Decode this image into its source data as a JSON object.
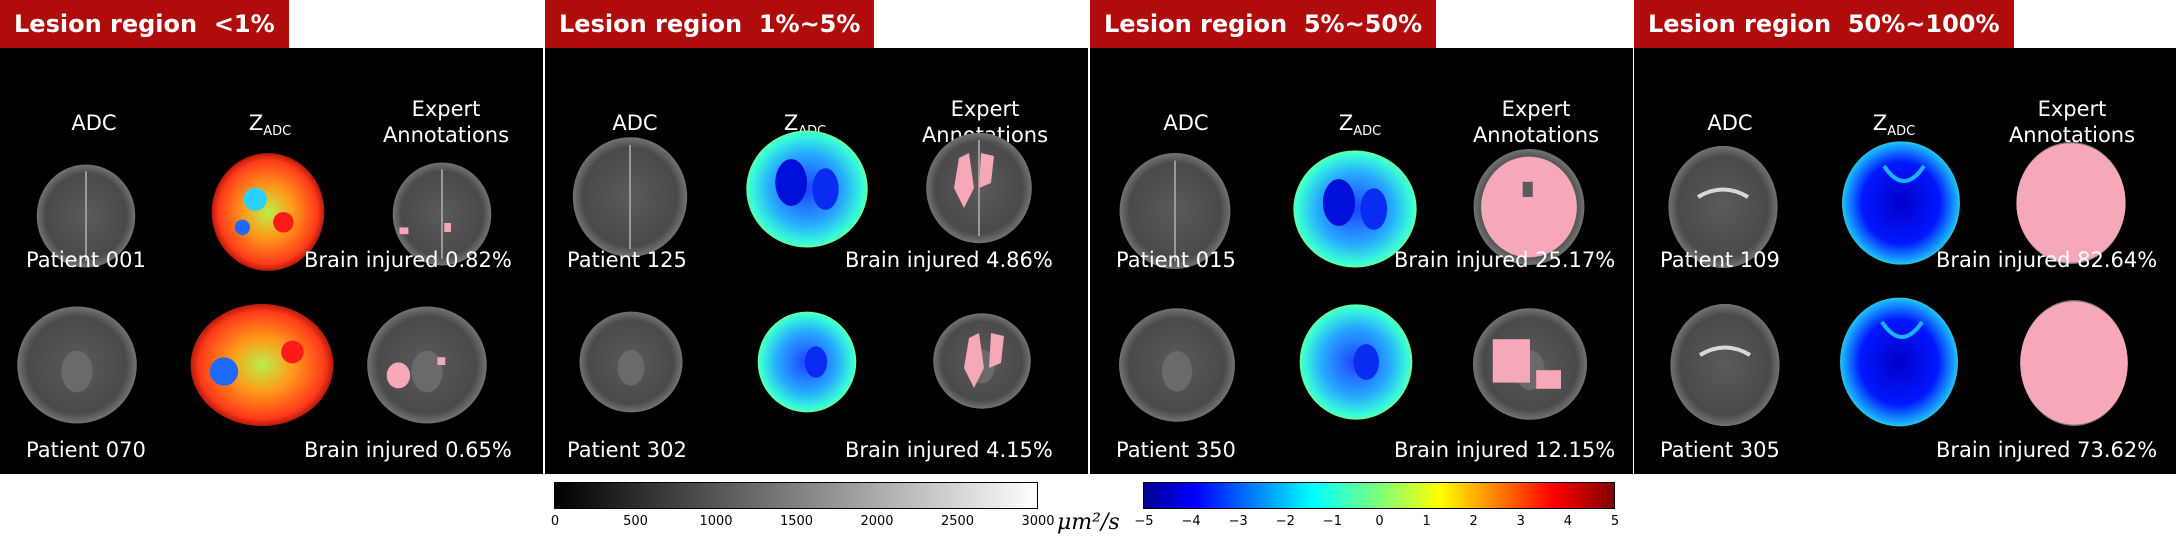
{
  "groups": [
    {
      "header": "Lesion region  <1%",
      "col1": "ADC",
      "col2_main": "Z",
      "col2_sub": "ADC",
      "col3_line1": "Expert",
      "col3_line2": "Annotations",
      "rows": [
        {
          "patient": "Patient 001",
          "injured": "Brain injured 0.82%"
        },
        {
          "patient": "Patient 070",
          "injured": "Brain injured 0.65%"
        }
      ]
    },
    {
      "header": "Lesion region  1%~5%",
      "col1": "ADC",
      "col2_main": "Z",
      "col2_sub": "ADC",
      "col3_line1": "Expert",
      "col3_line2": "Annotations",
      "rows": [
        {
          "patient": "Patient 125",
          "injured": "Brain injured 4.86%"
        },
        {
          "patient": "Patient 302",
          "injured": "Brain injured 4.15%"
        }
      ]
    },
    {
      "header": "Lesion region  5%~50%",
      "col1": "ADC",
      "col2_main": "Z",
      "col2_sub": "ADC",
      "col3_line1": "Expert",
      "col3_line2": "Annotations",
      "rows": [
        {
          "patient": "Patient 015",
          "injured": "Brain injured 25.17%"
        },
        {
          "patient": "Patient 350",
          "injured": "Brain injured 12.15%"
        }
      ]
    },
    {
      "header": "Lesion region  50%~100%",
      "col1": "ADC",
      "col2_main": "Z",
      "col2_sub": "ADC",
      "col3_line1": "Expert",
      "col3_line2": "Annotations",
      "rows": [
        {
          "patient": "Patient 109",
          "injured": "Brain injured 82.64%"
        },
        {
          "patient": "Patient 305",
          "injured": "Brain injured 73.62%"
        }
      ]
    }
  ],
  "colorbar_adc": {
    "ticks": [
      "0",
      "500",
      "1000",
      "1500",
      "2000",
      "2500",
      "3000"
    ],
    "unit": "μm²/s"
  },
  "colorbar_z": {
    "ticks": [
      "−5",
      "−4",
      "−3",
      "−2",
      "−1",
      "0",
      "1",
      "2",
      "3",
      "4",
      "5"
    ]
  },
  "colors": {
    "header": "#b10c0c",
    "panel": "#000000",
    "annotation": "#f7a8b8"
  }
}
